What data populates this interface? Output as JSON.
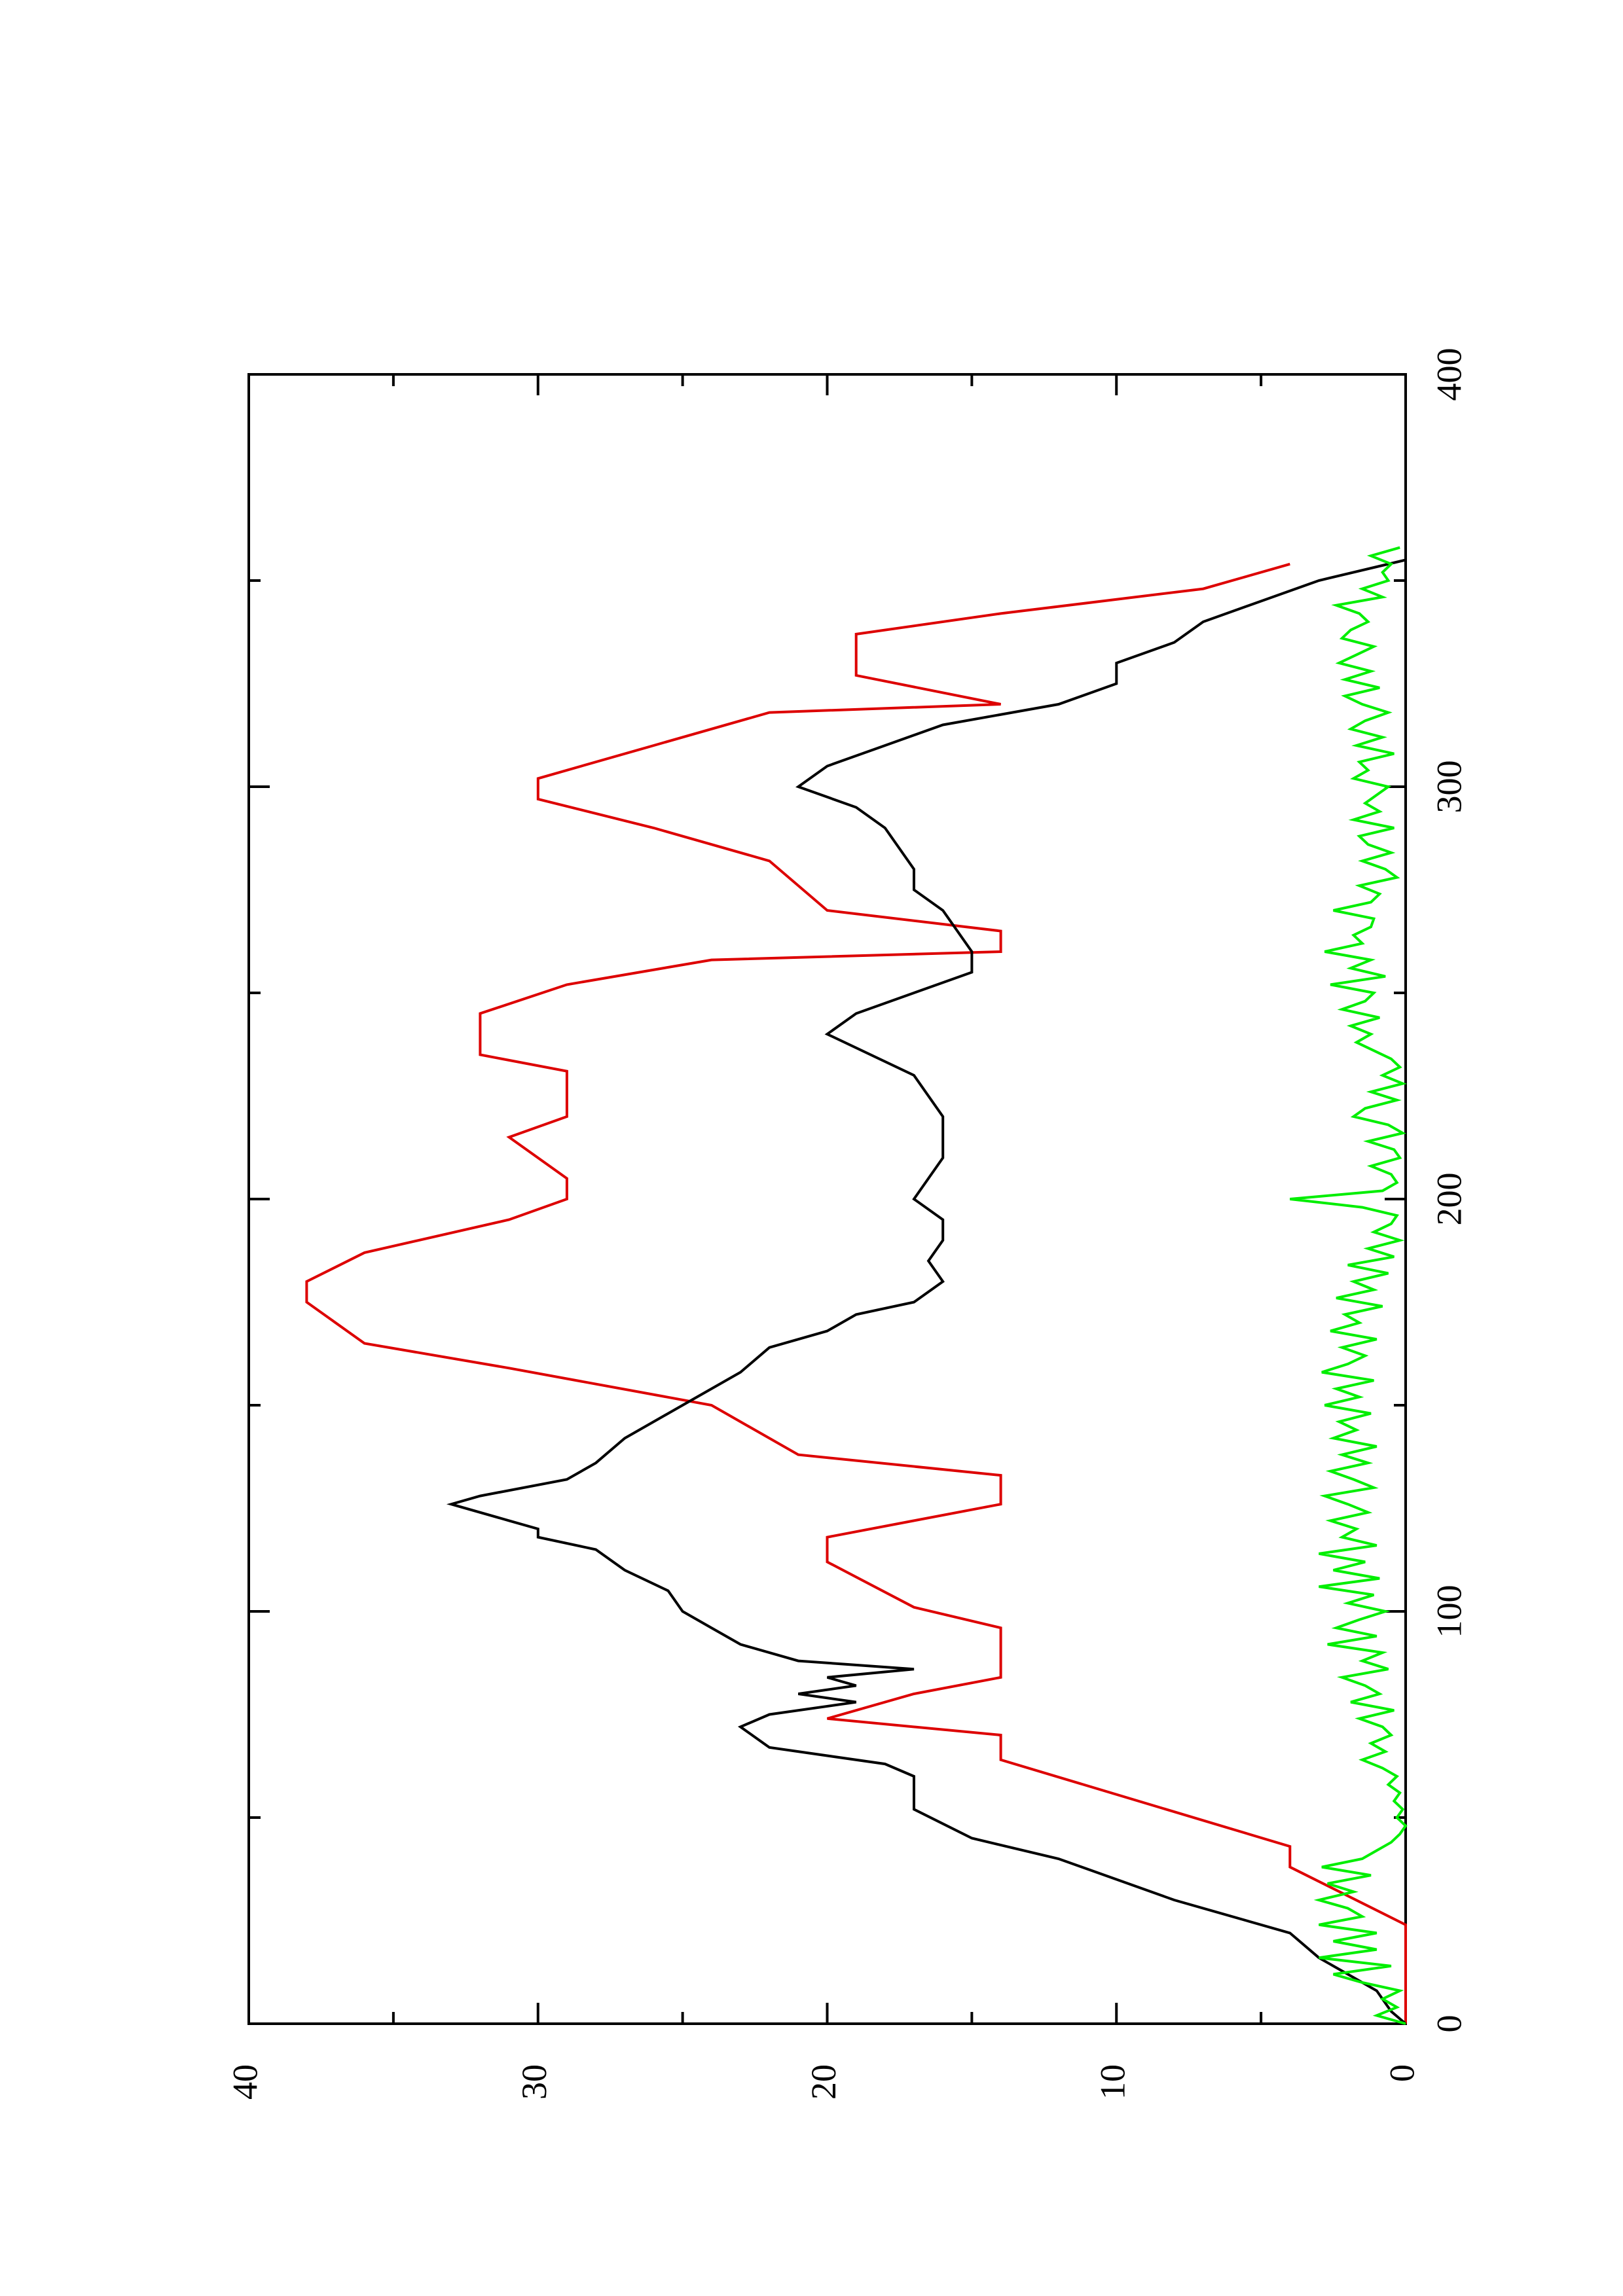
{
  "chart_data": {
    "type": "line",
    "orientation": "rotated-90-ccw",
    "title": "",
    "xlabel": "",
    "ylabel": "",
    "xlim": [
      0,
      400
    ],
    "ylim": [
      0,
      40
    ],
    "x_ticks": [
      0,
      100,
      200,
      300,
      400
    ],
    "y_ticks": [
      0,
      10,
      20,
      30,
      40
    ],
    "x_minor_ticks": [
      50,
      150,
      250,
      350
    ],
    "y_minor_ticks": [
      5,
      15,
      25,
      35
    ],
    "grid": false,
    "legend": "none",
    "series": [
      {
        "color": "#dd0000",
        "style": "step",
        "x": [
          0,
          24,
          38,
          43,
          64,
          70,
          74,
          80,
          84,
          96,
          101,
          112,
          118,
          122,
          126,
          133,
          138,
          150,
          159,
          165,
          175,
          180,
          187,
          195,
          200,
          205,
          215,
          220,
          231,
          235,
          245,
          252,
          258,
          260,
          265,
          270,
          282,
          290,
          297,
          302,
          310,
          318,
          320,
          327,
          337,
          342,
          348,
          354
        ],
        "y": [
          0,
          0,
          4,
          4,
          14,
          14,
          20,
          17,
          14,
          14,
          17,
          20,
          20,
          17,
          14,
          14,
          21,
          24,
          31,
          36,
          38,
          38,
          36,
          31,
          29,
          29,
          31,
          29,
          29,
          32,
          32,
          29,
          24,
          14,
          14,
          20,
          22,
          26,
          30,
          30,
          26,
          22,
          14,
          19,
          19,
          14,
          7,
          4
        ]
      },
      {
        "color": "#000000",
        "style": "line",
        "x": [
          0,
          3,
          8,
          12,
          16,
          22,
          30,
          40,
          45,
          52,
          60,
          63,
          67,
          72,
          75,
          78,
          80,
          82,
          84,
          86,
          88,
          92,
          96,
          100,
          105,
          110,
          115,
          118,
          120,
          122,
          126,
          128,
          132,
          136,
          142,
          150,
          158,
          164,
          168,
          172,
          175,
          180,
          185,
          190,
          195,
          200,
          205,
          210,
          220,
          230,
          240,
          245,
          250,
          255,
          260,
          265,
          270,
          275,
          280,
          285,
          290,
          295,
          300,
          305,
          310,
          315,
          320,
          325,
          330,
          335,
          340,
          345,
          350,
          355
        ],
        "y": [
          0,
          0.5,
          1,
          2,
          3,
          4,
          8,
          12,
          15,
          17,
          17,
          18,
          22,
          23,
          22,
          19,
          21,
          19,
          20,
          17,
          21,
          23,
          24,
          25,
          25.5,
          27,
          28,
          30,
          30,
          31,
          33,
          32,
          29,
          28,
          27,
          25,
          23,
          22,
          20,
          19,
          17,
          16,
          16.5,
          16,
          16,
          17,
          16.5,
          16,
          16,
          17,
          20,
          19,
          17,
          15,
          15,
          15.5,
          16,
          17,
          17,
          17.5,
          18,
          19,
          21,
          20,
          18,
          16,
          12,
          10,
          10,
          8,
          7,
          5,
          3,
          0
        ]
      },
      {
        "color": "#00ee00",
        "style": "line",
        "x": [
          0,
          2,
          4,
          6,
          8,
          10,
          12,
          14,
          16,
          18,
          20,
          22,
          24,
          26,
          28,
          30,
          32,
          34,
          36,
          38,
          40,
          42,
          44,
          46,
          48,
          50,
          52,
          54,
          56,
          58,
          60,
          62,
          64,
          66,
          68,
          70,
          72,
          74,
          76,
          78,
          80,
          82,
          84,
          86,
          88,
          90,
          92,
          94,
          96,
          98,
          100,
          102,
          104,
          106,
          108,
          110,
          112,
          114,
          116,
          118,
          120,
          122,
          124,
          126,
          128,
          130,
          132,
          134,
          136,
          138,
          140,
          142,
          144,
          146,
          148,
          150,
          152,
          154,
          156,
          158,
          160,
          162,
          164,
          166,
          168,
          170,
          172,
          174,
          176,
          178,
          180,
          182,
          184,
          186,
          188,
          190,
          192,
          194,
          196,
          198,
          200,
          202,
          204,
          206,
          208,
          210,
          212,
          214,
          216,
          218,
          220,
          222,
          224,
          226,
          228,
          230,
          232,
          234,
          236,
          238,
          240,
          242,
          244,
          246,
          248,
          250,
          252,
          254,
          256,
          258,
          260,
          262,
          264,
          266,
          268,
          270,
          272,
          274,
          276,
          278,
          280,
          282,
          284,
          286,
          288,
          290,
          292,
          294,
          296,
          298,
          300,
          302,
          304,
          306,
          308,
          310,
          312,
          314,
          316,
          318,
          320,
          322,
          324,
          326,
          328,
          330,
          332,
          334,
          336,
          338,
          340,
          342,
          344,
          346,
          348,
          350,
          352,
          354,
          356,
          358
        ],
        "y": [
          0,
          1,
          0.3,
          0.8,
          0.2,
          1.5,
          2.5,
          0.5,
          3,
          1,
          2.5,
          1,
          3,
          1.5,
          2,
          3,
          1.8,
          2.7,
          1.2,
          2.9,
          1.5,
          1,
          0.5,
          0.2,
          0,
          0.3,
          0.1,
          0.4,
          0.2,
          0.6,
          0.3,
          0.8,
          1.5,
          0.7,
          1.2,
          0.5,
          0.8,
          1.6,
          0.4,
          1.9,
          0.9,
          1.4,
          2.2,
          0.6,
          1.5,
          0.8,
          2.7,
          1,
          2.4,
          1.6,
          0.7,
          2,
          1.1,
          3,
          0.9,
          2.5,
          1.4,
          3,
          1,
          2.2,
          1.7,
          2.6,
          1.3,
          2,
          2.8,
          1.1,
          1.8,
          2.6,
          1.3,
          2.2,
          1,
          2.5,
          1.7,
          2.3,
          1.2,
          2.8,
          1.6,
          2.4,
          1.1,
          2.9,
          2,
          1.4,
          2.2,
          1,
          2.6,
          1.6,
          2.1,
          0.8,
          2.4,
          1.1,
          1.8,
          0.6,
          2,
          0.4,
          1.3,
          0.2,
          1.1,
          0.5,
          0.3,
          1.5,
          4,
          0.8,
          0.3,
          0.5,
          1.2,
          0.2,
          0.4,
          1.3,
          0.1,
          0.6,
          1.8,
          1.4,
          0.3,
          1.2,
          0.1,
          0.8,
          0.2,
          0.5,
          1.1,
          1.7,
          1.2,
          1.9,
          0.9,
          2.2,
          1.4,
          1.1,
          2.6,
          0.7,
          1.9,
          1.2,
          2.8,
          1.5,
          1.8,
          1.2,
          1.1,
          2.5,
          1.2,
          0.9,
          1.6,
          0.3,
          0.7,
          1.5,
          0.5,
          1.3,
          1.6,
          0.4,
          1.8,
          0.9,
          1.4,
          1,
          0.6,
          1.8,
          1.3,
          1.6,
          0.4,
          1.7,
          0.8,
          1.9,
          1.4,
          0.6,
          1.5,
          2.1,
          0.9,
          2.1,
          1.2,
          2.3,
          1.7,
          1.1,
          2.2,
          1.9,
          1.3,
          1.6,
          2.4,
          0.8,
          1.5,
          0.6,
          0.8,
          0.5,
          1.2,
          0.2
        ]
      }
    ]
  }
}
